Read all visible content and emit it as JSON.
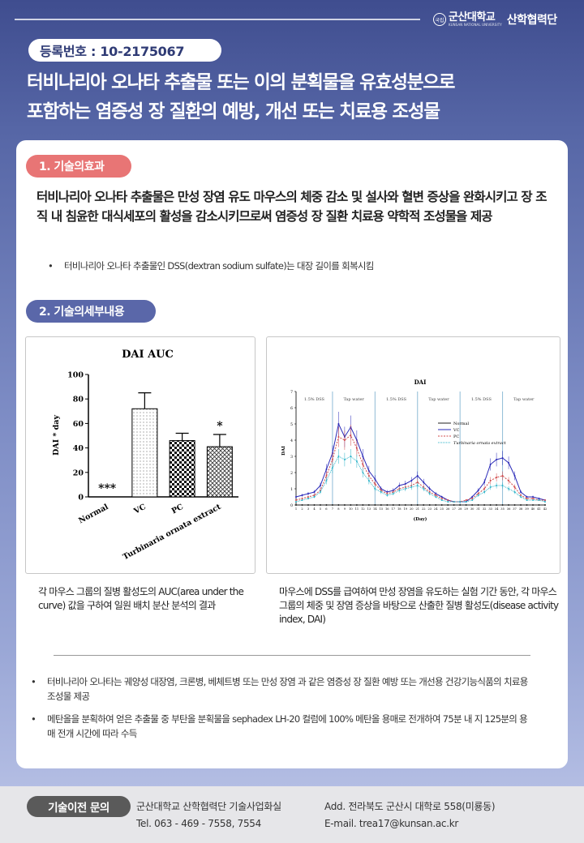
{
  "header": {
    "org_emblem": "국립",
    "univ_name": "군산대학교",
    "univ_eng": "KUNSAN NATIONAL UNIVERSITY",
    "org_name": "산학협력단"
  },
  "registration": "등록번호 : 10-2175067",
  "title_line1": "터비나리아 오나타 추출물 또는 이의 분획물을 유효성분으로",
  "title_line2": "포함하는 염증성 장 질환의 예방, 개선 또는 치료용 조성물",
  "section1": {
    "label": "1. 기술의효과",
    "text": "터비나리아 오나타 추출물은 만성 장염 유도 마우스의 체중 감소 및 설사와 혈변 증상을 완화시키고 장 조직 내 침윤한 대식세포의 활성을 감소시키므로써 염증성 장 질환 치료용 약학적 조성물을 제공",
    "bullet": "터비나리아 오나타 추출물인 DSS(dextran sodium sulfate)는 대장 길이를 회복시킴"
  },
  "section2": {
    "label": "2. 기술의세부내용",
    "caption1": "각 마우스 그룹의 질병 활성도의 AUC(area under the curve) 값을 구하여 일원 배치 분산 분석의 결과",
    "caption2": "마우스에 DSS를 급여하여 만성 장염을 유도하는 실험 기간 동안, 각 마우스 그룹의 체중 및 장염 증상을 바탕으로 산출한 질병 활성도(disease activity index, DAI)"
  },
  "bullets": [
    "터비나리아 오나타는 궤양성 대장염, 크론병, 베체트병 또는 만성 장염 과 같은 염증성 장 질환 예방 또는 개선용 건강기능식품의 치료용 조성물 제공",
    "메탄올을 분획하여 얻은 추출물 중 부탄올 분획물을 sephadex LH-20 컬럼에 100% 메탄올 용매로 전개하여 75분 내 지 125분의 용매 전개 시간에 따라 수득"
  ],
  "footer": {
    "contact_label": "기술이전 문의",
    "dept": "군산대학교 산학협력단 기술사업화실",
    "tel": "Tel. 063 - 469 - 7558, 7554",
    "address": "Add. 전라북도 군산시 대학로 558(미룡동)",
    "email": "E-mail. trea17@kunsan.ac.kr"
  },
  "chart_data": [
    {
      "type": "bar",
      "title": "DAI AUC",
      "ylabel": "DAI * day",
      "xlabel": "",
      "ylim": [
        0,
        100
      ],
      "yticks": [
        0,
        20,
        40,
        60,
        80,
        100
      ],
      "categories": [
        "Normal",
        "VC",
        "PC",
        "Turbinaria ornata extract"
      ],
      "values": [
        0,
        72,
        46,
        41
      ],
      "errors": [
        0,
        13,
        6,
        10
      ],
      "annotations": [
        "***",
        "",
        "",
        "*"
      ]
    },
    {
      "type": "line",
      "title": "DAI",
      "xlabel": "(Day)",
      "ylabel": "DAI",
      "xlim": [
        1,
        42
      ],
      "ylim": [
        0,
        7
      ],
      "yticks": [
        0,
        1,
        2,
        3,
        4,
        5,
        6,
        7
      ],
      "period_labels": [
        "1.5% DSS",
        "Tap water",
        "1.5% DSS",
        "Tap water",
        "1.5% DSS",
        "Tap water"
      ],
      "period_bounds": [
        [
          1,
          7
        ],
        [
          7,
          14
        ],
        [
          14,
          21
        ],
        [
          21,
          28
        ],
        [
          28,
          35
        ],
        [
          35,
          42
        ]
      ],
      "legend_position": "right",
      "x": [
        1,
        2,
        3,
        4,
        5,
        6,
        7,
        8,
        9,
        10,
        11,
        12,
        13,
        14,
        15,
        16,
        17,
        18,
        19,
        20,
        21,
        22,
        23,
        24,
        25,
        26,
        27,
        28,
        29,
        30,
        31,
        32,
        33,
        34,
        35,
        36,
        37,
        38,
        39,
        40,
        41,
        42
      ],
      "series": [
        {
          "name": "Normal",
          "color": "#222222",
          "values": [
            0,
            0,
            0,
            0,
            0,
            0,
            0,
            0,
            0,
            0,
            0,
            0,
            0,
            0,
            0,
            0,
            0,
            0,
            0,
            0,
            0,
            0,
            0,
            0,
            0,
            0,
            0,
            0,
            0,
            0,
            0,
            0,
            0,
            0,
            0,
            0,
            0,
            0,
            0,
            0,
            0,
            0
          ]
        },
        {
          "name": "VC",
          "color": "#2a2ab8",
          "values": [
            0.5,
            0.6,
            0.7,
            0.8,
            1.2,
            2.2,
            3.2,
            5.0,
            4.2,
            4.8,
            4.0,
            3.0,
            2.1,
            1.6,
            1.0,
            0.8,
            0.9,
            1.2,
            1.3,
            1.5,
            1.8,
            1.4,
            1.0,
            0.7,
            0.5,
            0.3,
            0.2,
            0.2,
            0.2,
            0.5,
            0.9,
            1.4,
            2.5,
            2.8,
            2.9,
            2.6,
            1.8,
            0.8,
            0.5,
            0.5,
            0.4,
            0.3
          ]
        },
        {
          "name": "PC",
          "color": "#d24a4a",
          "values": [
            0.3,
            0.4,
            0.5,
            0.6,
            0.9,
            1.8,
            2.8,
            4.2,
            4.0,
            4.3,
            3.5,
            2.5,
            1.8,
            1.3,
            0.9,
            0.7,
            0.8,
            1.0,
            1.1,
            1.2,
            1.4,
            1.1,
            0.8,
            0.6,
            0.4,
            0.3,
            0.2,
            0.2,
            0.3,
            0.4,
            0.7,
            1.0,
            1.5,
            1.7,
            1.8,
            1.5,
            1.1,
            0.6,
            0.4,
            0.4,
            0.3,
            0.3
          ]
        },
        {
          "name": "Turbinaria ornata extract",
          "color": "#2bb3c8",
          "values": [
            0.2,
            0.3,
            0.4,
            0.5,
            0.8,
            1.5,
            2.3,
            3.0,
            2.8,
            3.0,
            2.7,
            2.0,
            1.5,
            1.0,
            0.8,
            0.6,
            0.7,
            0.9,
            1.0,
            1.1,
            1.2,
            1.0,
            0.7,
            0.5,
            0.3,
            0.2,
            0.2,
            0.2,
            0.2,
            0.3,
            0.6,
            0.8,
            1.1,
            1.2,
            1.2,
            1.0,
            0.8,
            0.5,
            0.3,
            0.3,
            0.3,
            0.2
          ]
        }
      ]
    }
  ]
}
